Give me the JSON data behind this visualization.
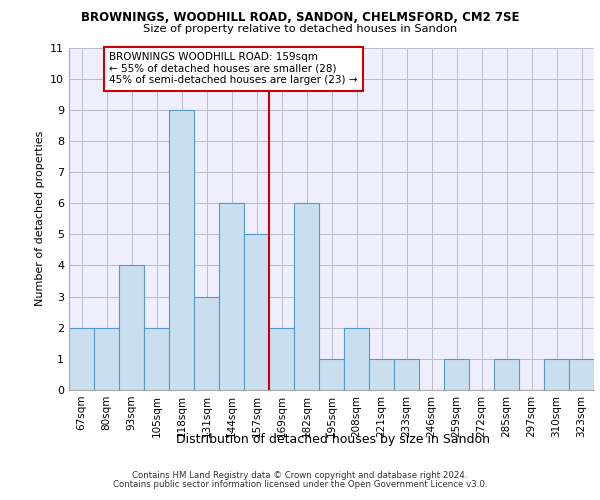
{
  "title1": "BROWNINGS, WOODHILL ROAD, SANDON, CHELMSFORD, CM2 7SE",
  "title2": "Size of property relative to detached houses in Sandon",
  "xlabel": "Distribution of detached houses by size in Sandon",
  "ylabel": "Number of detached properties",
  "categories": [
    "67sqm",
    "80sqm",
    "93sqm",
    "105sqm",
    "118sqm",
    "131sqm",
    "144sqm",
    "157sqm",
    "169sqm",
    "182sqm",
    "195sqm",
    "208sqm",
    "221sqm",
    "233sqm",
    "246sqm",
    "259sqm",
    "272sqm",
    "285sqm",
    "297sqm",
    "310sqm",
    "323sqm"
  ],
  "values": [
    2,
    2,
    4,
    2,
    9,
    3,
    6,
    5,
    2,
    6,
    1,
    2,
    1,
    1,
    0,
    1,
    0,
    1,
    0,
    1,
    1
  ],
  "bar_color": "#c9dff0",
  "bar_edgecolor": "#5599cc",
  "grid_color": "#bbbbcc",
  "bg_color": "#eeeeff",
  "ref_line_color": "#cc0000",
  "annotation_text": "BROWNINGS WOODHILL ROAD: 159sqm\n← 55% of detached houses are smaller (28)\n45% of semi-detached houses are larger (23) →",
  "annotation_box_color": "#cc0000",
  "ylim": [
    0,
    11
  ],
  "yticks": [
    0,
    1,
    2,
    3,
    4,
    5,
    6,
    7,
    8,
    9,
    10,
    11
  ],
  "footer1": "Contains HM Land Registry data © Crown copyright and database right 2024.",
  "footer2": "Contains public sector information licensed under the Open Government Licence v3.0."
}
